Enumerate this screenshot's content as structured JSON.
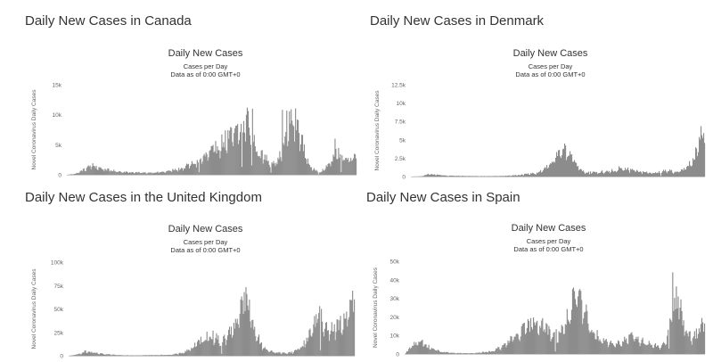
{
  "colors": {
    "bars": "#8c8c8c",
    "axis": "#cccccc",
    "text": "#333333",
    "ticks": "#666666"
  },
  "chart_data": [
    {
      "type": "bar",
      "heading": "Daily New Cases in Canada",
      "title": "Daily New Cases",
      "subtitle_1": "Cases per Day",
      "subtitle_2": "Data as of 0:00 GMT+0",
      "ylabel": "Novel Coronavirus Daily Cases",
      "ylim": [
        0,
        15000
      ],
      "ytick_values": [
        0,
        5000,
        10000,
        15000
      ],
      "ytick_labels": [
        "0",
        "5k",
        "10k",
        "15k"
      ],
      "grid": false,
      "n_days": 330,
      "keypoints": [
        [
          0,
          0
        ],
        [
          10,
          200
        ],
        [
          20,
          1000
        ],
        [
          28,
          1700
        ],
        [
          35,
          1300
        ],
        [
          45,
          900
        ],
        [
          55,
          650
        ],
        [
          70,
          450
        ],
        [
          90,
          350
        ],
        [
          110,
          500
        ],
        [
          130,
          1100
        ],
        [
          150,
          2500
        ],
        [
          165,
          4200
        ],
        [
          180,
          6200
        ],
        [
          192,
          7300
        ],
        [
          200,
          8500
        ],
        [
          205,
          10200
        ],
        [
          210,
          7000
        ],
        [
          218,
          3900
        ],
        [
          230,
          2500
        ],
        [
          240,
          2400
        ],
        [
          248,
          6000
        ],
        [
          252,
          8800
        ],
        [
          258,
          9800
        ],
        [
          265,
          7800
        ],
        [
          270,
          4200
        ],
        [
          278,
          1100
        ],
        [
          288,
          500
        ],
        [
          295,
          1300
        ],
        [
          305,
          3500
        ],
        [
          312,
          3900
        ],
        [
          318,
          2700
        ],
        [
          324,
          3100
        ],
        [
          330,
          4600
        ]
      ],
      "spikes": [
        [
          205,
          11200
        ],
        [
          210,
          10400
        ],
        [
          211,
          11000
        ],
        [
          245,
          10800
        ],
        [
          250,
          10700
        ],
        [
          255,
          10900
        ],
        [
          305,
          6000
        ]
      ],
      "dips": [
        150,
        199,
        210,
        232,
        286,
        312
      ]
    },
    {
      "type": "bar",
      "heading": "Daily New Cases in Denmark",
      "title": "Daily New Cases",
      "subtitle_1": "Cases per Day",
      "subtitle_2": "Data as of 0:00 GMT+0",
      "ylabel": "Novel Coronavirus Daily Cases",
      "ylim": [
        0,
        12500
      ],
      "ytick_values": [
        0,
        2500,
        5000,
        7500,
        10000,
        12500
      ],
      "ytick_labels": [
        "0",
        "2.5k",
        "5k",
        "7.5k",
        "10k",
        "12.5k"
      ],
      "grid": false,
      "n_days": 330,
      "keypoints": [
        [
          0,
          0
        ],
        [
          12,
          50
        ],
        [
          20,
          350
        ],
        [
          30,
          250
        ],
        [
          40,
          120
        ],
        [
          60,
          90
        ],
        [
          80,
          60
        ],
        [
          100,
          80
        ],
        [
          120,
          200
        ],
        [
          140,
          500
        ],
        [
          150,
          1200
        ],
        [
          160,
          2400
        ],
        [
          168,
          3400
        ],
        [
          172,
          4300
        ],
        [
          178,
          3400
        ],
        [
          186,
          1400
        ],
        [
          196,
          600
        ],
        [
          210,
          650
        ],
        [
          230,
          900
        ],
        [
          240,
          1100
        ],
        [
          250,
          900
        ],
        [
          260,
          650
        ],
        [
          270,
          500
        ],
        [
          280,
          700
        ],
        [
          290,
          900
        ],
        [
          295,
          700
        ],
        [
          305,
          900
        ],
        [
          315,
          2200
        ],
        [
          322,
          4200
        ],
        [
          326,
          6500
        ],
        [
          330,
          9600
        ]
      ],
      "spikes": [
        [
          172,
          4500
        ],
        [
          200,
          2000
        ],
        [
          233,
          1400
        ],
        [
          330,
          10000
        ]
      ],
      "dips": [
        200,
        280
      ]
    },
    {
      "type": "bar",
      "heading": "Daily New Cases in the United Kingdom",
      "title": "Daily New Cases",
      "subtitle_1": "Cases per Day",
      "subtitle_2": "Data as of 0:00 GMT+0",
      "ylabel": "Novel Coronavirus Daily Cases",
      "ylim": [
        0,
        100000
      ],
      "ytick_values": [
        0,
        25000,
        50000,
        75000,
        100000
      ],
      "ytick_labels": [
        "0",
        "25k",
        "50k",
        "75k",
        "100k"
      ],
      "grid": false,
      "n_days": 330,
      "keypoints": [
        [
          0,
          0
        ],
        [
          10,
          1500
        ],
        [
          18,
          5000
        ],
        [
          28,
          3500
        ],
        [
          40,
          1800
        ],
        [
          55,
          800
        ],
        [
          75,
          500
        ],
        [
          100,
          800
        ],
        [
          118,
          1200
        ],
        [
          130,
          3000
        ],
        [
          142,
          9000
        ],
        [
          155,
          20000
        ],
        [
          165,
          24000
        ],
        [
          175,
          16000
        ],
        [
          183,
          23000
        ],
        [
          192,
          40000
        ],
        [
          198,
          52000
        ],
        [
          202,
          65000
        ],
        [
          206,
          60000
        ],
        [
          212,
          35000
        ],
        [
          222,
          12000
        ],
        [
          232,
          5000
        ],
        [
          245,
          3000
        ],
        [
          258,
          4000
        ],
        [
          270,
          12000
        ],
        [
          280,
          30000
        ],
        [
          288,
          50000
        ],
        [
          292,
          38000
        ],
        [
          302,
          30000
        ],
        [
          312,
          35000
        ],
        [
          320,
          42000
        ],
        [
          325,
          55000
        ],
        [
          330,
          85000
        ]
      ],
      "spikes": [
        [
          202,
          68000
        ],
        [
          205,
          66000
        ],
        [
          289,
          53000
        ],
        [
          330,
          88000
        ]
      ],
      "dips": [
        176,
        290
      ]
    },
    {
      "type": "bar",
      "heading": "Daily New Cases in Spain",
      "title": "Daily New Cases",
      "subtitle_1": "Cases per Day",
      "subtitle_2": "Data as of 0:00 GMT+0",
      "ylabel": "Novel Coronavirus Daily Cases",
      "ylim": [
        0,
        50000
      ],
      "ytick_values": [
        0,
        10000,
        20000,
        30000,
        40000,
        50000
      ],
      "ytick_labels": [
        "0",
        "10k",
        "20k",
        "30k",
        "40k",
        "50k"
      ],
      "grid": false,
      "n_days": 330,
      "keypoints": [
        [
          0,
          0
        ],
        [
          8,
          5000
        ],
        [
          14,
          8000
        ],
        [
          20,
          6000
        ],
        [
          28,
          3500
        ],
        [
          40,
          1200
        ],
        [
          55,
          500
        ],
        [
          75,
          400
        ],
        [
          95,
          1500
        ],
        [
          108,
          4500
        ],
        [
          118,
          9000
        ],
        [
          128,
          13000
        ],
        [
          138,
          17000
        ],
        [
          145,
          20000
        ],
        [
          155,
          15000
        ],
        [
          162,
          11000
        ],
        [
          170,
          12000
        ],
        [
          178,
          20000
        ],
        [
          184,
          30000
        ],
        [
          190,
          32000
        ],
        [
          196,
          26000
        ],
        [
          204,
          16000
        ],
        [
          212,
          10000
        ],
        [
          222,
          7000
        ],
        [
          232,
          6000
        ],
        [
          242,
          8000
        ],
        [
          250,
          10000
        ],
        [
          258,
          8000
        ],
        [
          268,
          6000
        ],
        [
          280,
          4000
        ],
        [
          287,
          7000
        ],
        [
          293,
          25000
        ],
        [
          298,
          30000
        ],
        [
          302,
          26000
        ],
        [
          308,
          15000
        ],
        [
          316,
          9000
        ],
        [
          324,
          14000
        ],
        [
          328,
          22000
        ],
        [
          330,
          28000
        ]
      ],
      "spikes": [
        [
          294,
          44000
        ],
        [
          184,
          35000
        ],
        [
          193,
          34000
        ],
        [
          300,
          31000
        ],
        [
          330,
          30000
        ]
      ],
      "dips": [
        165,
        290
      ]
    }
  ]
}
